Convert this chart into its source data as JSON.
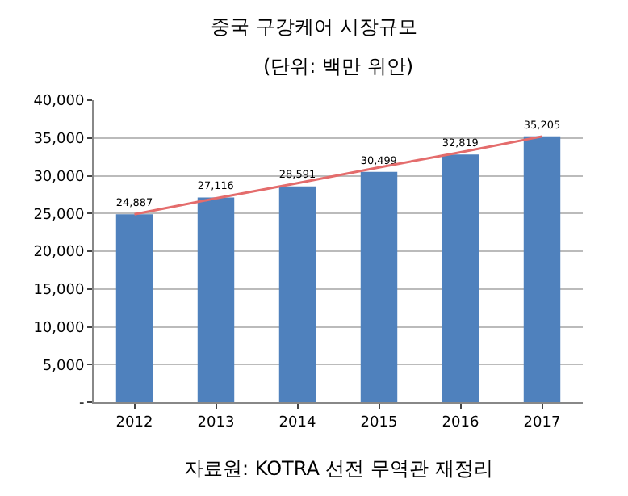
{
  "chart_data": {
    "type": "bar",
    "title": "중국 구강케어 시장규모",
    "subtitle": "(단위: 백만 위안)",
    "annotations": [
      "자료원: KOTRA 선전 무역관 재정리"
    ],
    "categories": [
      "2012",
      "2013",
      "2014",
      "2015",
      "2016",
      "2017"
    ],
    "series": [
      {
        "color": "#4f81bd",
        "values": [
          24887,
          27116,
          28591,
          30499,
          32819,
          35205
        ],
        "value_labels": [
          "24,887",
          "27,116",
          "28,591",
          "30,499",
          "32,819",
          "35,205"
        ]
      },
      {
        "type": "line",
        "color": "#e46c6c",
        "values": [
          24900,
          27000,
          29000,
          31100,
          33100,
          35200
        ]
      }
    ],
    "ylim": [
      0,
      40000
    ],
    "yticks": [
      {
        "value": 0,
        "label": "-"
      },
      {
        "value": 5000,
        "label": "5,000"
      },
      {
        "value": 10000,
        "label": "10,000"
      },
      {
        "value": 15000,
        "label": "15,000"
      },
      {
        "value": 20000,
        "label": "20,000"
      },
      {
        "value": 25000,
        "label": "25,000"
      },
      {
        "value": 30000,
        "label": "30,000"
      },
      {
        "value": 35000,
        "label": "35,000"
      },
      {
        "value": 40000,
        "label": "40,000"
      }
    ],
    "grid": "y"
  }
}
